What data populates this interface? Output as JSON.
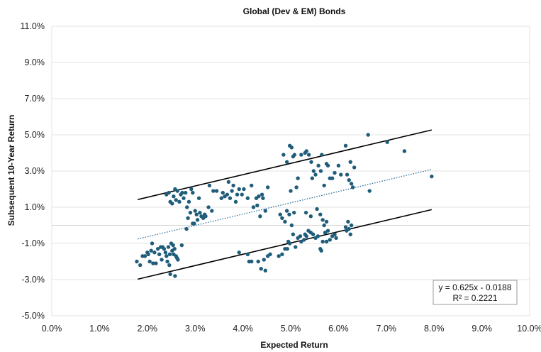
{
  "chart_data": {
    "type": "scatter",
    "title": "Global (Dev & EM) Bonds",
    "xlabel": "Expected Return",
    "ylabel": "Subsequent 10-Year Return",
    "xlim": [
      0,
      10
    ],
    "ylim": [
      -5,
      11
    ],
    "x_ticks": [
      "0.0%",
      "1.0%",
      "2.0%",
      "3.0%",
      "4.0%",
      "5.0%",
      "6.0%",
      "7.0%",
      "8.0%",
      "9.0%",
      "10.0%"
    ],
    "y_ticks": [
      "-5.0%",
      "-3.0%",
      "-1.0%",
      "1.0%",
      "3.0%",
      "5.0%",
      "7.0%",
      "9.0%",
      "11.0%"
    ],
    "grid": "horizontal",
    "colors": {
      "points": "#1f5d7a",
      "trend": "#2a6f9a",
      "bands": "#000000",
      "grid": "#e3e3e3"
    },
    "trendline": {
      "slope": 0.625,
      "intercept": -1.88,
      "x_range": [
        1.8,
        7.95
      ],
      "style": "dotted"
    },
    "bands": [
      {
        "slope": 0.625,
        "intercept": 0.3,
        "x_range": [
          1.8,
          7.95
        ]
      },
      {
        "slope": 0.625,
        "intercept": -4.1,
        "x_range": [
          1.8,
          7.95
        ]
      }
    ],
    "annotation": {
      "line1": "y = 0.625x - 0.0188",
      "line2": "R² = 0.2221",
      "position": "bottom-right"
    },
    "points": [
      [
        1.78,
        -2.0
      ],
      [
        1.85,
        -2.2
      ],
      [
        1.9,
        -1.7
      ],
      [
        1.95,
        -1.7
      ],
      [
        2.0,
        -1.5
      ],
      [
        2.02,
        -1.6
      ],
      [
        2.05,
        -2.0
      ],
      [
        2.08,
        -1.4
      ],
      [
        2.1,
        -1.0
      ],
      [
        2.12,
        -2.1
      ],
      [
        2.15,
        -1.5
      ],
      [
        2.18,
        -2.1
      ],
      [
        2.22,
        -1.3
      ],
      [
        2.25,
        -1.6
      ],
      [
        2.28,
        -1.2
      ],
      [
        2.3,
        -1.9
      ],
      [
        2.32,
        -1.2
      ],
      [
        2.35,
        -1.3
      ],
      [
        2.38,
        -1.5
      ],
      [
        2.4,
        -1.7
      ],
      [
        2.42,
        -2.0
      ],
      [
        2.44,
        -1.2
      ],
      [
        2.46,
        -2.2
      ],
      [
        2.47,
        -1.6
      ],
      [
        2.48,
        -2.7
      ],
      [
        2.5,
        -1.0
      ],
      [
        2.52,
        -1.4
      ],
      [
        2.54,
        -1.1
      ],
      [
        2.55,
        -1.6
      ],
      [
        2.57,
        -1.3
      ],
      [
        2.58,
        -2.8
      ],
      [
        2.6,
        -1.7
      ],
      [
        2.62,
        -1.8
      ],
      [
        2.64,
        -1.9
      ],
      [
        2.72,
        -1.1
      ],
      [
        2.4,
        1.7
      ],
      [
        2.45,
        1.8
      ],
      [
        2.48,
        1.3
      ],
      [
        2.52,
        1.2
      ],
      [
        2.55,
        1.6
      ],
      [
        2.58,
        2.0
      ],
      [
        2.6,
        1.4
      ],
      [
        2.63,
        1.9
      ],
      [
        2.67,
        1.3
      ],
      [
        2.7,
        1.7
      ],
      [
        2.73,
        1.8
      ],
      [
        2.76,
        1.5
      ],
      [
        2.8,
        1.8
      ],
      [
        2.83,
        1.0
      ],
      [
        2.85,
        0.4
      ],
      [
        2.87,
        1.3
      ],
      [
        2.9,
        0.7
      ],
      [
        2.92,
        2.0
      ],
      [
        2.95,
        1.8
      ],
      [
        2.98,
        0.1
      ],
      [
        3.0,
        0.8
      ],
      [
        3.03,
        0.6
      ],
      [
        3.05,
        0.3
      ],
      [
        3.08,
        1.5
      ],
      [
        3.1,
        0.7
      ],
      [
        3.13,
        0.5
      ],
      [
        3.17,
        0.4
      ],
      [
        3.2,
        0.6
      ],
      [
        2.82,
        -0.2
      ],
      [
        2.95,
        0.1
      ],
      [
        3.3,
        2.2
      ],
      [
        3.38,
        1.9
      ],
      [
        3.45,
        1.9
      ],
      [
        3.55,
        1.5
      ],
      [
        3.58,
        1.8
      ],
      [
        3.62,
        1.6
      ],
      [
        3.67,
        1.7
      ],
      [
        3.7,
        2.4
      ],
      [
        3.73,
        1.5
      ],
      [
        3.77,
        1.9
      ],
      [
        3.8,
        2.2
      ],
      [
        3.85,
        1.3
      ],
      [
        3.88,
        1.7
      ],
      [
        3.92,
        2.0
      ],
      [
        3.98,
        1.7
      ],
      [
        4.02,
        2.0
      ],
      [
        4.1,
        1.5
      ],
      [
        4.18,
        2.2
      ],
      [
        4.22,
        1.0
      ],
      [
        4.28,
        1.5
      ],
      [
        4.3,
        1.1
      ],
      [
        4.33,
        1.6
      ],
      [
        4.36,
        0.5
      ],
      [
        4.4,
        1.7
      ],
      [
        4.42,
        1.5
      ],
      [
        4.47,
        0.8
      ],
      [
        4.52,
        2.1
      ],
      [
        3.22,
        0.5
      ],
      [
        3.35,
        0.8
      ],
      [
        3.28,
        1.0
      ],
      [
        3.92,
        -1.5
      ],
      [
        4.1,
        -1.6
      ],
      [
        4.13,
        -2.0
      ],
      [
        4.18,
        -2.0
      ],
      [
        4.32,
        -2.0
      ],
      [
        4.38,
        -2.4
      ],
      [
        4.44,
        -1.9
      ],
      [
        4.47,
        -2.5
      ],
      [
        4.52,
        -1.7
      ],
      [
        4.57,
        -1.6
      ],
      [
        4.75,
        -1.7
      ],
      [
        4.82,
        -1.6
      ],
      [
        4.88,
        -1.3
      ],
      [
        4.93,
        -1.3
      ],
      [
        4.95,
        -0.9
      ],
      [
        4.98,
        -1.0
      ],
      [
        5.05,
        -0.5
      ],
      [
        5.1,
        -1.2
      ],
      [
        5.15,
        -0.7
      ],
      [
        5.2,
        -0.6
      ],
      [
        5.22,
        -0.9
      ],
      [
        5.28,
        -0.8
      ],
      [
        5.3,
        -0.5
      ],
      [
        5.33,
        -0.6
      ],
      [
        5.37,
        -0.3
      ],
      [
        5.42,
        -0.4
      ],
      [
        5.47,
        -0.5
      ],
      [
        5.52,
        -0.7
      ],
      [
        5.57,
        -0.6
      ],
      [
        5.62,
        -1.3
      ],
      [
        5.64,
        -1.4
      ],
      [
        5.67,
        -0.9
      ],
      [
        5.72,
        -0.4
      ],
      [
        5.75,
        -0.9
      ],
      [
        5.78,
        -0.3
      ],
      [
        5.82,
        -0.8
      ],
      [
        5.87,
        -0.6
      ],
      [
        5.92,
        -0.5
      ],
      [
        5.95,
        -0.7
      ],
      [
        6.15,
        -0.1
      ],
      [
        6.17,
        -0.3
      ],
      [
        6.2,
        0.2
      ],
      [
        6.22,
        -0.2
      ],
      [
        6.25,
        -0.5
      ],
      [
        6.27,
        0.0
      ],
      [
        4.78,
        0.6
      ],
      [
        4.82,
        0.4
      ],
      [
        4.88,
        0.2
      ],
      [
        4.92,
        0.8
      ],
      [
        4.97,
        0.6
      ],
      [
        5.02,
        0.0
      ],
      [
        5.07,
        0.7
      ],
      [
        5.32,
        0.7
      ],
      [
        5.42,
        0.5
      ],
      [
        5.55,
        0.9
      ],
      [
        5.62,
        0.6
      ],
      [
        5.67,
        0.3
      ],
      [
        5.7,
        0.0
      ],
      [
        5.75,
        0.2
      ],
      [
        4.85,
        3.9
      ],
      [
        4.92,
        3.5
      ],
      [
        4.98,
        4.4
      ],
      [
        5.02,
        4.3
      ],
      [
        5.05,
        3.8
      ],
      [
        5.08,
        3.9
      ],
      [
        5.12,
        2.1
      ],
      [
        5.22,
        3.9
      ],
      [
        5.3,
        4.0
      ],
      [
        5.33,
        4.1
      ],
      [
        5.38,
        3.9
      ],
      [
        5.43,
        3.5
      ],
      [
        5.45,
        2.6
      ],
      [
        5.48,
        3.0
      ],
      [
        5.52,
        2.8
      ],
      [
        5.58,
        3.3
      ],
      [
        5.63,
        3.0
      ],
      [
        5.65,
        3.9
      ],
      [
        5.7,
        2.2
      ],
      [
        5.75,
        3.4
      ],
      [
        5.78,
        3.3
      ],
      [
        5.82,
        2.6
      ],
      [
        5.87,
        2.6
      ],
      [
        5.92,
        2.9
      ],
      [
        6.0,
        3.3
      ],
      [
        6.05,
        2.8
      ],
      [
        6.15,
        4.4
      ],
      [
        6.18,
        2.8
      ],
      [
        6.22,
        2.5
      ],
      [
        6.25,
        3.5
      ],
      [
        6.27,
        2.3
      ],
      [
        6.3,
        2.1
      ],
      [
        6.33,
        3.2
      ],
      [
        6.62,
        5.0
      ],
      [
        6.65,
        1.9
      ],
      [
        7.02,
        4.6
      ],
      [
        7.38,
        4.1
      ],
      [
        7.95,
        2.7
      ],
      [
        5.0,
        1.9
      ],
      [
        5.15,
        2.6
      ]
    ]
  }
}
